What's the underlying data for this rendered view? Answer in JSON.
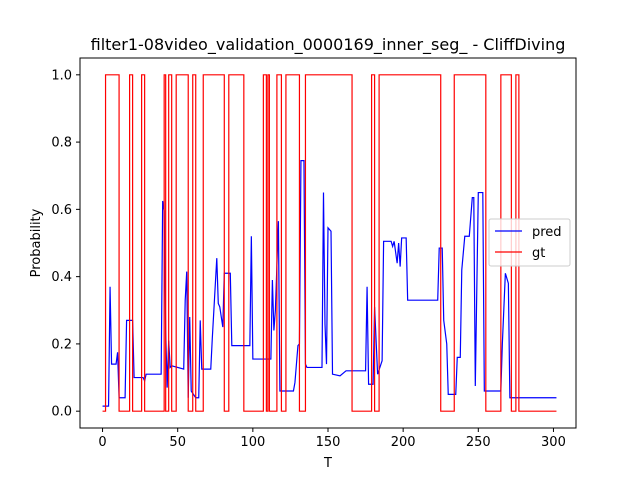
{
  "chart_data": {
    "type": "line",
    "title": "filter1-08video_validation_0000169_inner_seg_ - CliffDiving",
    "xlabel": "T",
    "ylabel": "Probability",
    "xlim": [
      -15,
      315
    ],
    "ylim": [
      -0.05,
      1.05
    ],
    "xticks": [
      0,
      50,
      100,
      150,
      200,
      250,
      300
    ],
    "yticks": [
      0.0,
      0.2,
      0.4,
      0.6,
      0.8,
      1.0
    ],
    "xtick_labels": [
      "0",
      "50",
      "100",
      "150",
      "200",
      "250",
      "300"
    ],
    "ytick_labels": [
      "0.0",
      "0.2",
      "0.4",
      "0.6",
      "0.8",
      "1.0"
    ],
    "grid": false,
    "legend_position": "center-right",
    "series": [
      {
        "name": "pred",
        "color": "#0000ff",
        "points": [
          [
            0,
            0.015
          ],
          [
            4,
            0.015
          ],
          [
            5,
            0.37
          ],
          [
            6,
            0.14
          ],
          [
            9,
            0.14
          ],
          [
            10,
            0.175
          ],
          [
            11,
            0.04
          ],
          [
            15,
            0.04
          ],
          [
            16,
            0.27
          ],
          [
            20,
            0.27
          ],
          [
            21,
            0.1
          ],
          [
            27,
            0.1
          ],
          [
            28,
            0.09
          ],
          [
            29,
            0.11
          ],
          [
            39,
            0.11
          ],
          [
            40,
            0.625
          ],
          [
            41,
            0.595
          ],
          [
            42,
            0.24
          ],
          [
            43,
            0.07
          ],
          [
            44,
            0.21
          ],
          [
            45,
            0.13
          ],
          [
            46,
            0.135
          ],
          [
            54,
            0.125
          ],
          [
            55,
            0.33
          ],
          [
            56,
            0.415
          ],
          [
            57,
            0.04
          ],
          [
            58,
            0.28
          ],
          [
            59,
            0.06
          ],
          [
            62,
            0.04
          ],
          [
            64,
            0.04
          ],
          [
            65,
            0.27
          ],
          [
            66,
            0.125
          ],
          [
            72,
            0.125
          ],
          [
            73,
            0.215
          ],
          [
            76,
            0.455
          ],
          [
            77,
            0.32
          ],
          [
            78,
            0.31
          ],
          [
            80,
            0.25
          ],
          [
            81,
            0.41
          ],
          [
            85,
            0.41
          ],
          [
            86,
            0.195
          ],
          [
            98,
            0.195
          ],
          [
            99,
            0.52
          ],
          [
            100,
            0.155
          ],
          [
            112,
            0.155
          ],
          [
            113,
            0.39
          ],
          [
            114,
            0.24
          ],
          [
            115,
            0.3
          ],
          [
            117,
            0.565
          ],
          [
            118,
            0.06
          ],
          [
            127,
            0.06
          ],
          [
            128,
            0.085
          ],
          [
            130,
            0.195
          ],
          [
            131,
            0.2
          ],
          [
            132,
            0.745
          ],
          [
            134,
            0.745
          ],
          [
            135,
            0.14
          ],
          [
            136,
            0.13
          ],
          [
            146,
            0.13
          ],
          [
            147,
            0.65
          ],
          [
            148,
            0.26
          ],
          [
            149,
            0.14
          ],
          [
            150,
            0.545
          ],
          [
            152,
            0.535
          ],
          [
            153,
            0.11
          ],
          [
            158,
            0.105
          ],
          [
            162,
            0.12
          ],
          [
            175,
            0.12
          ],
          [
            176,
            0.37
          ],
          [
            177,
            0.08
          ],
          [
            180,
            0.08
          ],
          [
            181,
            0.31
          ],
          [
            183,
            0.11
          ],
          [
            186,
            0.15
          ],
          [
            187,
            0.505
          ],
          [
            192,
            0.505
          ],
          [
            193,
            0.49
          ],
          [
            194,
            0.505
          ],
          [
            196,
            0.44
          ],
          [
            197,
            0.5
          ],
          [
            198,
            0.43
          ],
          [
            199,
            0.515
          ],
          [
            202,
            0.515
          ],
          [
            203,
            0.33
          ],
          [
            223,
            0.33
          ],
          [
            224,
            0.485
          ],
          [
            226,
            0.485
          ],
          [
            227,
            0.27
          ],
          [
            229,
            0.2
          ],
          [
            230,
            0.05
          ],
          [
            235,
            0.05
          ],
          [
            236,
            0.16
          ],
          [
            238,
            0.16
          ],
          [
            239,
            0.42
          ],
          [
            241,
            0.52
          ],
          [
            244,
            0.52
          ],
          [
            246,
            0.635
          ],
          [
            247,
            0.635
          ],
          [
            248,
            0.075
          ],
          [
            250,
            0.65
          ],
          [
            253,
            0.65
          ],
          [
            254,
            0.06
          ],
          [
            265,
            0.06
          ],
          [
            266,
            0.2
          ],
          [
            268,
            0.41
          ],
          [
            270,
            0.38
          ],
          [
            271,
            0.04
          ],
          [
            302,
            0.04
          ]
        ]
      },
      {
        "name": "gt",
        "color": "#ff0000",
        "points": [
          [
            0,
            0.0
          ],
          [
            2,
            0.0
          ],
          [
            2,
            1.0
          ],
          [
            11,
            1.0
          ],
          [
            11,
            0.0
          ],
          [
            18,
            0.0
          ],
          [
            18,
            1.0
          ],
          [
            20,
            1.0
          ],
          [
            20,
            0.0
          ],
          [
            26,
            0.0
          ],
          [
            26,
            1.0
          ],
          [
            28,
            1.0
          ],
          [
            28,
            0.0
          ],
          [
            41,
            0.0
          ],
          [
            41,
            1.0
          ],
          [
            42,
            1.0
          ],
          [
            42,
            0.0
          ],
          [
            44,
            0.0
          ],
          [
            44,
            1.0
          ],
          [
            46,
            1.0
          ],
          [
            46,
            0.0
          ],
          [
            49,
            0.0
          ],
          [
            49,
            1.0
          ],
          [
            57,
            1.0
          ],
          [
            57,
            0.0
          ],
          [
            60,
            0.0
          ],
          [
            60,
            1.0
          ],
          [
            62,
            1.0
          ],
          [
            62,
            0.0
          ],
          [
            67,
            0.0
          ],
          [
            67,
            1.0
          ],
          [
            81,
            1.0
          ],
          [
            81,
            0.0
          ],
          [
            84,
            0.0
          ],
          [
            84,
            1.0
          ],
          [
            94,
            1.0
          ],
          [
            94,
            0.0
          ],
          [
            107,
            0.0
          ],
          [
            107,
            1.0
          ],
          [
            109,
            1.0
          ],
          [
            109,
            0.0
          ],
          [
            110,
            0.0
          ],
          [
            110,
            1.0
          ],
          [
            111,
            1.0
          ],
          [
            111,
            0.0
          ],
          [
            116,
            0.0
          ],
          [
            116,
            1.0
          ],
          [
            119,
            1.0
          ],
          [
            119,
            0.0
          ],
          [
            122,
            0.0
          ],
          [
            122,
            1.0
          ],
          [
            131,
            1.0
          ],
          [
            131,
            0.0
          ],
          [
            135,
            0.0
          ],
          [
            135,
            1.0
          ],
          [
            166,
            1.0
          ],
          [
            166,
            0.0
          ],
          [
            179,
            0.0
          ],
          [
            179,
            1.0
          ],
          [
            181,
            1.0
          ],
          [
            181,
            0.0
          ],
          [
            184,
            0.0
          ],
          [
            184,
            1.0
          ],
          [
            225,
            1.0
          ],
          [
            225,
            0.0
          ],
          [
            234,
            0.0
          ],
          [
            234,
            1.0
          ],
          [
            255,
            1.0
          ],
          [
            255,
            0.0
          ],
          [
            265,
            0.0
          ],
          [
            265,
            1.0
          ],
          [
            272,
            1.0
          ],
          [
            272,
            0.0
          ],
          [
            275,
            0.0
          ],
          [
            275,
            1.0
          ],
          [
            277,
            1.0
          ],
          [
            277,
            0.0
          ],
          [
            302,
            0.0
          ]
        ]
      }
    ]
  }
}
